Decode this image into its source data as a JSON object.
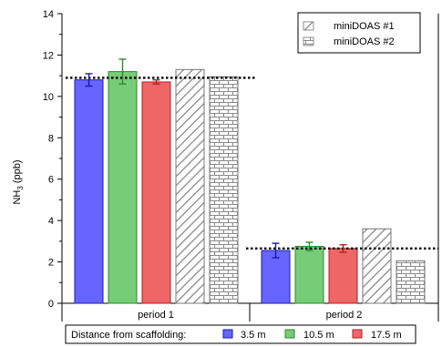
{
  "chart_data": {
    "type": "bar",
    "ylabel": "NH3 (ppb)",
    "ylabel_main": "NH",
    "ylabel_sub": "3",
    "ylabel_unit": " (ppb)",
    "ylim": [
      0,
      14
    ],
    "yticks": [
      0,
      2,
      4,
      6,
      8,
      10,
      12,
      14
    ],
    "categories": [
      "period 1",
      "period 2"
    ],
    "legend_title": "Distance from scaffolding:",
    "legend_position": "top-right",
    "series": [
      {
        "name": "3.5 m",
        "color": "#6666ff",
        "pattern": "solid",
        "values": [
          10.8,
          2.55
        ],
        "err": [
          0.3,
          0.35
        ]
      },
      {
        "name": "10.5 m",
        "color": "#77cc77",
        "pattern": "solid",
        "values": [
          11.2,
          2.75
        ],
        "err": [
          0.6,
          0.2
        ]
      },
      {
        "name": "17.5 m",
        "color": "#ee6666",
        "pattern": "solid",
        "values": [
          10.7,
          2.65
        ],
        "err": [
          0.1,
          0.18
        ]
      },
      {
        "name": "miniDOAS #1",
        "color": "#888888",
        "pattern": "hatch",
        "values": [
          11.3,
          3.6
        ]
      },
      {
        "name": "miniDOAS #2",
        "color": "#888888",
        "pattern": "brick",
        "values": [
          10.95,
          2.05
        ]
      }
    ],
    "reference_lines": [
      10.9,
      2.65
    ],
    "grid": false
  }
}
